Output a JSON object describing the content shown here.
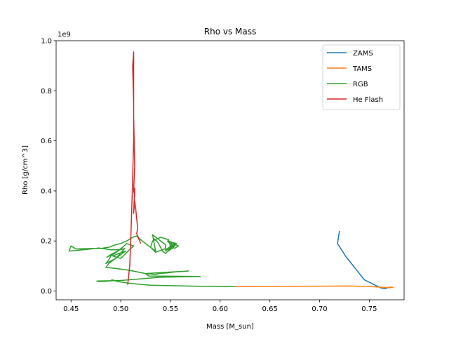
{
  "chart_data": {
    "type": "line",
    "title": "Rho vs Mass",
    "xlabel": "Mass [M_sun]",
    "ylabel": "Rho [g/cm^3]",
    "y_offset_label": "1e9",
    "xlim": [
      0.435,
      0.785
    ],
    "ylim": [
      -0.035,
      1.0
    ],
    "xticks": [
      0.45,
      0.5,
      0.55,
      0.6,
      0.65,
      0.7,
      0.75
    ],
    "xtick_labels": [
      "0.45",
      "0.50",
      "0.55",
      "0.60",
      "0.65",
      "0.70",
      "0.75"
    ],
    "yticks": [
      0.0,
      0.2,
      0.4,
      0.6,
      0.8,
      1.0
    ],
    "ytick_labels": [
      "0.0",
      "0.2",
      "0.4",
      "0.6",
      "0.8",
      "1.0"
    ],
    "grid": false,
    "legend": "upper right",
    "series": [
      {
        "name": "ZAMS",
        "color": "#1f77b4",
        "x": [
          0.72,
          0.718,
          0.726,
          0.733,
          0.745,
          0.755,
          0.762,
          0.766,
          0.77
        ],
        "y": [
          0.24,
          0.19,
          0.14,
          0.105,
          0.045,
          0.025,
          0.012,
          0.01,
          0.015
        ]
      },
      {
        "name": "TAMS",
        "color": "#ff7f0e",
        "x": [
          0.615,
          0.64,
          0.68,
          0.73,
          0.75,
          0.765,
          0.77,
          0.774,
          0.77
        ],
        "y": [
          0.018,
          0.018,
          0.019,
          0.02,
          0.018,
          0.015,
          0.013,
          0.015,
          0.016
        ]
      },
      {
        "name": "RGB",
        "color": "#2ca02c",
        "x": [
          0.615,
          0.58,
          0.53,
          0.51,
          0.497,
          0.491,
          0.49,
          0.478,
          0.476,
          0.5,
          0.54,
          0.58,
          0.528,
          0.525,
          0.568,
          0.556,
          0.545,
          0.538,
          0.535,
          0.53,
          0.525,
          0.512,
          0.505,
          0.495,
          0.485,
          0.488,
          0.493,
          0.5,
          0.505,
          0.498,
          0.492,
          0.5,
          0.51,
          0.513,
          0.506,
          0.502,
          0.497,
          0.491,
          0.486,
          0.495,
          0.501,
          0.49,
          0.488,
          0.485,
          0.495,
          0.504,
          0.5,
          0.49,
          0.485,
          0.478,
          0.47,
          0.455,
          0.448,
          0.45,
          0.455,
          0.47,
          0.48,
          0.488,
          0.495,
          0.5,
          0.506,
          0.512,
          0.516,
          0.52,
          0.528,
          0.535,
          0.532,
          0.545,
          0.545,
          0.535,
          0.53,
          0.532,
          0.54,
          0.548,
          0.55,
          0.545,
          0.55,
          0.555,
          0.545,
          0.552,
          0.556,
          0.547,
          0.554,
          0.558,
          0.55,
          0.553,
          0.548,
          0.555,
          0.55,
          0.545,
          0.542,
          0.54,
          0.538,
          0.536,
          0.533
        ],
        "y": [
          0.018,
          0.019,
          0.023,
          0.03,
          0.038,
          0.045,
          0.04,
          0.038,
          0.04,
          0.042,
          0.055,
          0.058,
          0.06,
          0.07,
          0.08,
          0.077,
          0.072,
          0.07,
          0.066,
          0.068,
          0.07,
          0.08,
          0.085,
          0.09,
          0.095,
          0.11,
          0.125,
          0.145,
          0.16,
          0.15,
          0.14,
          0.13,
          0.17,
          0.18,
          0.19,
          0.175,
          0.16,
          0.148,
          0.135,
          0.155,
          0.17,
          0.14,
          0.125,
          0.11,
          0.13,
          0.17,
          0.165,
          0.165,
          0.168,
          0.172,
          0.168,
          0.162,
          0.16,
          0.18,
          0.168,
          0.17,
          0.17,
          0.175,
          0.185,
          0.19,
          0.2,
          0.215,
          0.22,
          0.205,
          0.18,
          0.16,
          0.225,
          0.185,
          0.17,
          0.155,
          0.175,
          0.2,
          0.215,
          0.205,
          0.18,
          0.16,
          0.175,
          0.19,
          0.165,
          0.17,
          0.19,
          0.2,
          0.17,
          0.18,
          0.195,
          0.175,
          0.16,
          0.185,
          0.17,
          0.15,
          0.16,
          0.175,
          0.19,
          0.2,
          0.21
        ]
      },
      {
        "name": "He Flash",
        "color": "#d62728",
        "x": [
          0.507,
          0.509,
          0.51,
          0.511,
          0.512,
          0.513,
          0.513,
          0.512,
          0.513,
          0.513,
          0.514,
          0.513,
          0.514,
          0.514,
          0.513,
          0.514,
          0.515,
          0.517,
          0.516,
          0.518,
          0.52
        ],
        "y": [
          0.025,
          0.1,
          0.2,
          0.32,
          0.45,
          0.6,
          0.75,
          0.9,
          0.955,
          0.7,
          0.5,
          0.4,
          0.38,
          0.41,
          0.31,
          0.36,
          0.33,
          0.25,
          0.23,
          0.21,
          0.19
        ]
      }
    ]
  }
}
